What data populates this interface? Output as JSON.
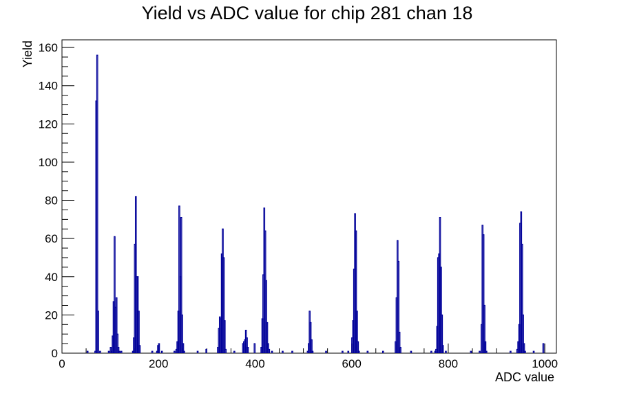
{
  "chart_data": {
    "type": "histogram",
    "title": "Yield vs ADC value for chip 281 chan 18",
    "xlabel": "ADC value",
    "ylabel": "Yield",
    "xlim": [
      0,
      1024
    ],
    "ylim": [
      0,
      164
    ],
    "xticks": [
      0,
      200,
      400,
      600,
      800,
      1000
    ],
    "yticks": [
      0,
      20,
      40,
      60,
      80,
      100,
      120,
      140,
      160
    ],
    "grid": false,
    "line_color": "#000099",
    "bin_width": 2,
    "bins": [
      [
        52,
        1
      ],
      [
        68,
        1
      ],
      [
        70,
        132
      ],
      [
        72,
        156
      ],
      [
        74,
        22
      ],
      [
        78,
        1
      ],
      [
        96,
        1
      ],
      [
        100,
        3
      ],
      [
        102,
        1
      ],
      [
        104,
        9
      ],
      [
        106,
        27
      ],
      [
        108,
        61
      ],
      [
        110,
        24
      ],
      [
        112,
        29
      ],
      [
        114,
        10
      ],
      [
        116,
        3
      ],
      [
        118,
        1
      ],
      [
        122,
        1
      ],
      [
        146,
        1
      ],
      [
        148,
        8
      ],
      [
        150,
        57
      ],
      [
        152,
        82
      ],
      [
        154,
        40
      ],
      [
        156,
        40
      ],
      [
        158,
        22
      ],
      [
        160,
        4
      ],
      [
        186,
        1
      ],
      [
        196,
        1
      ],
      [
        198,
        4
      ],
      [
        200,
        5
      ],
      [
        206,
        1
      ],
      [
        232,
        1
      ],
      [
        236,
        2
      ],
      [
        238,
        6
      ],
      [
        240,
        22
      ],
      [
        242,
        77
      ],
      [
        244,
        40
      ],
      [
        246,
        71
      ],
      [
        248,
        20
      ],
      [
        250,
        5
      ],
      [
        252,
        1
      ],
      [
        280,
        1
      ],
      [
        298,
        2
      ],
      [
        322,
        3
      ],
      [
        324,
        13
      ],
      [
        326,
        19
      ],
      [
        328,
        18
      ],
      [
        330,
        52
      ],
      [
        332,
        65
      ],
      [
        334,
        50
      ],
      [
        336,
        17
      ],
      [
        338,
        2
      ],
      [
        356,
        1
      ],
      [
        374,
        5
      ],
      [
        376,
        6
      ],
      [
        378,
        7
      ],
      [
        380,
        12
      ],
      [
        382,
        8
      ],
      [
        384,
        3
      ],
      [
        398,
        5
      ],
      [
        412,
        3
      ],
      [
        414,
        18
      ],
      [
        416,
        41
      ],
      [
        418,
        76
      ],
      [
        420,
        64
      ],
      [
        422,
        38
      ],
      [
        424,
        16
      ],
      [
        426,
        5
      ],
      [
        428,
        2
      ],
      [
        434,
        1
      ],
      [
        456,
        1
      ],
      [
        476,
        1
      ],
      [
        508,
        1
      ],
      [
        510,
        5
      ],
      [
        512,
        22
      ],
      [
        514,
        16
      ],
      [
        516,
        7
      ],
      [
        518,
        1
      ],
      [
        546,
        1
      ],
      [
        580,
        1
      ],
      [
        592,
        1
      ],
      [
        600,
        8
      ],
      [
        602,
        17
      ],
      [
        604,
        44
      ],
      [
        606,
        73
      ],
      [
        608,
        64
      ],
      [
        610,
        22
      ],
      [
        612,
        6
      ],
      [
        614,
        1
      ],
      [
        632,
        1
      ],
      [
        664,
        1
      ],
      [
        690,
        6
      ],
      [
        692,
        29
      ],
      [
        694,
        59
      ],
      [
        696,
        48
      ],
      [
        698,
        11
      ],
      [
        700,
        3
      ],
      [
        722,
        1
      ],
      [
        764,
        1
      ],
      [
        772,
        1
      ],
      [
        774,
        2
      ],
      [
        776,
        14
      ],
      [
        778,
        50
      ],
      [
        780,
        52
      ],
      [
        782,
        71
      ],
      [
        784,
        45
      ],
      [
        786,
        20
      ],
      [
        788,
        4
      ],
      [
        794,
        1
      ],
      [
        846,
        1
      ],
      [
        864,
        1
      ],
      [
        868,
        15
      ],
      [
        870,
        67
      ],
      [
        872,
        62
      ],
      [
        874,
        25
      ],
      [
        876,
        6
      ],
      [
        878,
        1
      ],
      [
        928,
        1
      ],
      [
        942,
        2
      ],
      [
        944,
        6
      ],
      [
        946,
        15
      ],
      [
        948,
        68
      ],
      [
        950,
        74
      ],
      [
        952,
        57
      ],
      [
        954,
        20
      ],
      [
        956,
        5
      ],
      [
        958,
        1
      ],
      [
        976,
        1
      ],
      [
        996,
        5
      ]
    ]
  }
}
